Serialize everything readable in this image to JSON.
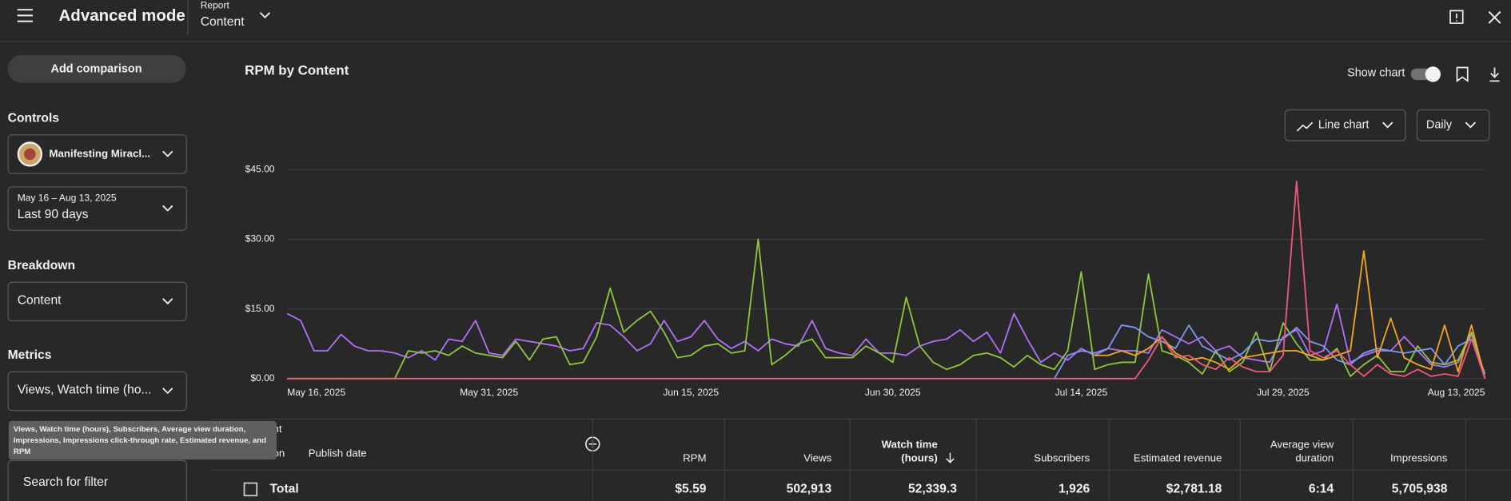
{
  "header": {
    "title": "Advanced mode",
    "report_label": "Report",
    "report_value": "Content"
  },
  "sidebar": {
    "add_comparison": "Add comparison",
    "controls_heading": "Controls",
    "channel": "Manifesting Miracl...",
    "date_range": "May 16 – Aug 13, 2025",
    "period": "Last 90 days",
    "breakdown_heading": "Breakdown",
    "breakdown": "Content",
    "metrics_heading": "Metrics",
    "metrics": "Views, Watch time (ho...",
    "tooltip": [
      "Views, Watch time (hours), Subscribers, Average view duration,",
      "Impressions, Impressions click-through rate, Estimated revenue, and",
      "RPM"
    ],
    "search_placeholder": "Search for filter"
  },
  "toolbar": {
    "show_chart": "Show chart",
    "chart_type": "Line chart",
    "interval": "Daily"
  },
  "chart_data": {
    "type": "line",
    "title": "RPM by Content",
    "categories": [
      "May 16, 2025",
      null,
      null,
      null,
      null,
      null,
      null,
      null,
      null,
      null,
      null,
      null,
      null,
      null,
      null,
      "May 31, 2025",
      null,
      null,
      null,
      null,
      null,
      null,
      null,
      null,
      null,
      null,
      null,
      null,
      null,
      null,
      "Jun 15, 2025",
      null,
      null,
      null,
      null,
      null,
      null,
      null,
      null,
      null,
      null,
      null,
      null,
      null,
      null,
      "Jun 30, 2025",
      null,
      null,
      null,
      null,
      null,
      null,
      null,
      null,
      null,
      null,
      null,
      null,
      null,
      "Jul 14, 2025",
      null,
      null,
      null,
      null,
      null,
      null,
      null,
      null,
      null,
      null,
      null,
      null,
      null,
      null,
      "Jul 29, 2025",
      null,
      null,
      null,
      null,
      null,
      null,
      null,
      null,
      null,
      null,
      null,
      null,
      null,
      null,
      "Aug 13, 2025"
    ],
    "ylim": [
      0,
      45
    ],
    "yticks": [
      {
        "value": 0,
        "label": "$0.00"
      },
      {
        "value": 15,
        "label": "$15.00"
      },
      {
        "value": 30,
        "label": "$30.00"
      },
      {
        "value": 45,
        "label": "$45.00"
      }
    ],
    "grid": true,
    "series": [
      {
        "color": "#b36ff7",
        "values": [
          14,
          12.5,
          6,
          6,
          9.5,
          7,
          6,
          6,
          5.5,
          4.5,
          6,
          4,
          8.5,
          8,
          12.5,
          5.5,
          5,
          8.5,
          8,
          7.5,
          7,
          6,
          6.5,
          12,
          11.5,
          9,
          6,
          7.5,
          12.5,
          8,
          9,
          12.5,
          8.5,
          6.5,
          8,
          6,
          8.5,
          7.5,
          7,
          12.5,
          6.5,
          5.5,
          5,
          8.5,
          5.5,
          5.5,
          5,
          7,
          8,
          8.5,
          10.5,
          8,
          10,
          5.5,
          14,
          8.5,
          3.5,
          5.5,
          4,
          6.5,
          5,
          6.5,
          6,
          6,
          5.5,
          10.5,
          9,
          7.5,
          9,
          6,
          7,
          4.5,
          4,
          3.5,
          9,
          10.5,
          5,
          6,
          16,
          3.5,
          5,
          6,
          6,
          9,
          6,
          3,
          2.5,
          3.5,
          9.5,
          1
        ]
      },
      {
        "color": "#8ec63f",
        "values": [
          0,
          0,
          0,
          0,
          0,
          0,
          0,
          0,
          0,
          6,
          5.5,
          6,
          5,
          7,
          5.5,
          5,
          4.5,
          8,
          4,
          8.5,
          9,
          3,
          3.5,
          9,
          19.5,
          10,
          12.5,
          14.5,
          10,
          4.5,
          5,
          7,
          7.5,
          5.5,
          6,
          30,
          3,
          5,
          7.5,
          8.5,
          4.5,
          4.5,
          4.5,
          7,
          5.5,
          3.5,
          17.5,
          7,
          3.5,
          2,
          3,
          5,
          5.5,
          4.5,
          2.5,
          5,
          3,
          2,
          6,
          23,
          2,
          3,
          3.5,
          3.5,
          22.5,
          6,
          5,
          3.5,
          1,
          6,
          1.5,
          3.5,
          10,
          1.5,
          12,
          7.5,
          4,
          4,
          6.5,
          0.5,
          3,
          5,
          1.5,
          1.5,
          7,
          3.5,
          3,
          4,
          10,
          0
        ]
      },
      {
        "color": "#7b9af0",
        "values": [
          null,
          null,
          null,
          null,
          null,
          null,
          null,
          null,
          null,
          null,
          null,
          null,
          null,
          null,
          null,
          null,
          null,
          null,
          null,
          null,
          null,
          null,
          null,
          null,
          null,
          null,
          null,
          null,
          null,
          null,
          null,
          null,
          null,
          null,
          null,
          null,
          null,
          null,
          null,
          null,
          null,
          null,
          null,
          null,
          null,
          null,
          null,
          null,
          null,
          null,
          null,
          null,
          null,
          null,
          null,
          null,
          null,
          0,
          5,
          6,
          5.5,
          6.5,
          11.5,
          11,
          9,
          8,
          6.5,
          11.5,
          7,
          5.5,
          4,
          5.5,
          8.5,
          8,
          8.5,
          11,
          8,
          7,
          4,
          3,
          5.5,
          6.5,
          6,
          5.5,
          6,
          6.5,
          3,
          7,
          8.5,
          1
        ]
      },
      {
        "color": "#f4a524",
        "values": [
          null,
          null,
          null,
          null,
          null,
          null,
          null,
          null,
          null,
          null,
          null,
          null,
          null,
          null,
          null,
          null,
          null,
          null,
          null,
          null,
          null,
          null,
          null,
          null,
          null,
          null,
          null,
          null,
          null,
          null,
          null,
          null,
          null,
          null,
          null,
          null,
          null,
          null,
          null,
          null,
          null,
          null,
          null,
          null,
          null,
          null,
          null,
          null,
          null,
          null,
          null,
          null,
          null,
          null,
          null,
          null,
          null,
          null,
          null,
          null,
          5,
          5,
          6,
          5,
          6.5,
          9,
          5.5,
          4,
          4.5,
          3.5,
          2,
          4.5,
          5,
          5.5,
          6,
          6,
          5,
          4,
          5,
          6,
          27.5,
          4.5,
          13,
          4.5,
          3,
          2,
          11.5,
          1.5,
          11.5,
          0
        ]
      },
      {
        "color": "#f0577b",
        "values": [
          0,
          0,
          0,
          0,
          0,
          0,
          0,
          0,
          0,
          0,
          0,
          0,
          0,
          0,
          0,
          0,
          0,
          0,
          0,
          0,
          0,
          0,
          0,
          0,
          0,
          0,
          0,
          0,
          0,
          0,
          0,
          0,
          0,
          0,
          0,
          0,
          0,
          0,
          0,
          0,
          0,
          0,
          0,
          0,
          0,
          0,
          0,
          0,
          0,
          0,
          0,
          0,
          0,
          0,
          0,
          0,
          0,
          0,
          0,
          0,
          0,
          0,
          0,
          0,
          4,
          9,
          4.5,
          5,
          3,
          2,
          4.5,
          2.5,
          1.5,
          1.5,
          5,
          42.5,
          6,
          4.5,
          6,
          3,
          0.5,
          3,
          1,
          0.5,
          2,
          0.5,
          1,
          0.5,
          8.5,
          0
        ]
      }
    ]
  },
  "table": {
    "columns": [
      "Content",
      "Duration",
      "Publish date",
      "RPM",
      "Views",
      [
        "Watch time",
        "(hours)"
      ],
      "Subscribers",
      "Estimated revenue",
      [
        "Average view",
        "duration"
      ],
      "Impressions"
    ],
    "total": [
      "Total",
      "$5.59",
      "502,913",
      "52,339.3",
      "1,926",
      "$2,781.18",
      "6:14",
      "5,705,938"
    ]
  }
}
